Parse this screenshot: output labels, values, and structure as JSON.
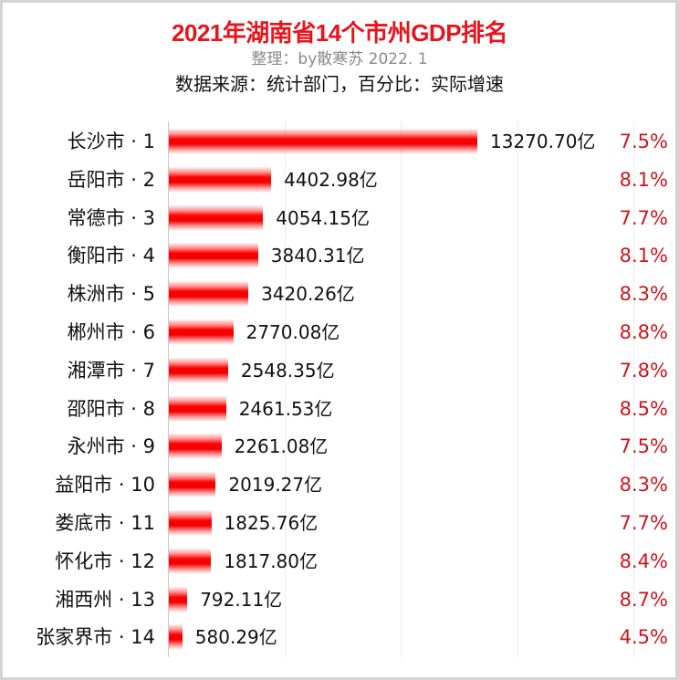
{
  "header": {
    "title": "2021年湖南省14个市州GDP排名",
    "credit": "整理：by散寒苏  2022. 1",
    "source": "数据来源：统计部门，百分比：实际增速"
  },
  "colors": {
    "title": "#e8141c",
    "bar": "#ff0000",
    "percent": "#d0141c",
    "credit": "#8a8a8a"
  },
  "rows": [
    {
      "label": "长沙市 · 1",
      "value": "13270.70亿",
      "growth": "7.5%"
    },
    {
      "label": "岳阳市 · 2",
      "value": "4402.98亿",
      "growth": "8.1%"
    },
    {
      "label": "常德市 · 3",
      "value": "4054.15亿",
      "growth": "7.7%"
    },
    {
      "label": "衡阳市 · 4",
      "value": "3840.31亿",
      "growth": "8.1%"
    },
    {
      "label": "株洲市 · 5",
      "value": "3420.26亿",
      "growth": "8.3%"
    },
    {
      "label": "郴州市 · 6",
      "value": "2770.08亿",
      "growth": "8.8%"
    },
    {
      "label": "湘潭市 · 7",
      "value": "2548.35亿",
      "growth": "7.8%"
    },
    {
      "label": "邵阳市 · 8",
      "value": "2461.53亿",
      "growth": "8.5%"
    },
    {
      "label": "永州市 · 9",
      "value": "2261.08亿",
      "growth": "7.5%"
    },
    {
      "label": "益阳市 · 10",
      "value": "2019.27亿",
      "growth": "8.3%"
    },
    {
      "label": "娄底市 · 11",
      "value": "1825.76亿",
      "growth": "7.7%"
    },
    {
      "label": "怀化市 · 12",
      "value": "1817.80亿",
      "growth": "8.4%"
    },
    {
      "label": "湘西州 · 13",
      "value": "792.11亿",
      "growth": "8.7%"
    },
    {
      "label": "张家界市 · 14",
      "value": "580.29亿",
      "growth": "4.5%"
    }
  ],
  "chart_data": {
    "type": "bar",
    "orientation": "horizontal",
    "title": "2021年湖南省14个市州GDP排名",
    "subtitle": "整理：by散寒苏  2022. 1 / 数据来源：统计部门，百分比：实际增速",
    "xlabel": "",
    "ylabel": "",
    "unit": "亿",
    "categories": [
      "长沙市",
      "岳阳市",
      "常德市",
      "衡阳市",
      "株洲市",
      "郴州市",
      "湘潭市",
      "邵阳市",
      "永州市",
      "益阳市",
      "娄底市",
      "怀化市",
      "湘西州",
      "张家界市"
    ],
    "ranks": [
      1,
      2,
      3,
      4,
      5,
      6,
      7,
      8,
      9,
      10,
      11,
      12,
      13,
      14
    ],
    "series": [
      {
        "name": "GDP (亿元)",
        "values": [
          13270.7,
          4402.98,
          4054.15,
          3840.31,
          3420.26,
          2770.08,
          2548.35,
          2461.53,
          2261.08,
          2019.27,
          1825.76,
          1817.8,
          792.11,
          580.29
        ]
      },
      {
        "name": "实际增速 (%)",
        "values": [
          7.5,
          8.1,
          7.7,
          8.1,
          8.3,
          8.8,
          7.8,
          8.5,
          7.5,
          8.3,
          7.7,
          8.4,
          8.7,
          4.5
        ]
      }
    ],
    "xlim": [
      0,
      22000
    ],
    "grid": {
      "vertical": true,
      "interval": 5000
    },
    "legend": "none"
  }
}
